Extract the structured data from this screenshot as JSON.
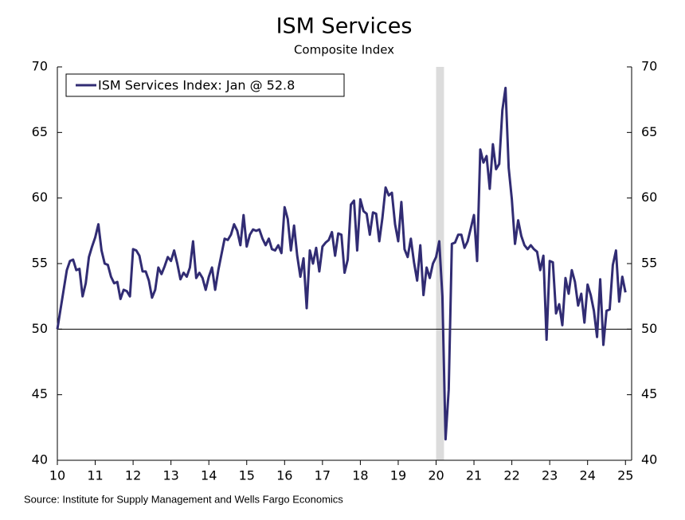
{
  "chart_data": {
    "type": "line",
    "title": "ISM Services",
    "subtitle": "Composite Index",
    "source": "Source: Institute for Supply Management and Wells Fargo Economics",
    "categories": [
      "10",
      null,
      null,
      null,
      null,
      null,
      null,
      null,
      null,
      null,
      null,
      null,
      "11",
      null,
      null,
      null,
      null,
      null,
      null,
      null,
      null,
      null,
      null,
      null,
      "12",
      null,
      null,
      null,
      null,
      null,
      null,
      null,
      null,
      null,
      null,
      null,
      "13",
      null,
      null,
      null,
      null,
      null,
      null,
      null,
      null,
      null,
      null,
      null,
      "14",
      null,
      null,
      null,
      null,
      null,
      null,
      null,
      null,
      null,
      null,
      null,
      "15",
      null,
      null,
      null,
      null,
      null,
      null,
      null,
      null,
      null,
      null,
      null,
      "16",
      null,
      null,
      null,
      null,
      null,
      null,
      null,
      null,
      null,
      null,
      null,
      "17",
      null,
      null,
      null,
      null,
      null,
      null,
      null,
      null,
      null,
      null,
      null,
      "18",
      null,
      null,
      null,
      null,
      null,
      null,
      null,
      null,
      null,
      null,
      null,
      "19",
      null,
      null,
      null,
      null,
      null,
      null,
      null,
      null,
      null,
      null,
      null,
      "20",
      null,
      null,
      null,
      null,
      null,
      null,
      null,
      null,
      null,
      null,
      null,
      "21",
      null,
      null,
      null,
      null,
      null,
      null,
      null,
      null,
      null,
      null,
      null,
      "22",
      null,
      null,
      null,
      null,
      null,
      null,
      null,
      null,
      null,
      null,
      null,
      "23",
      null,
      null,
      null,
      null,
      null,
      null,
      null,
      null,
      null,
      null,
      null,
      "24",
      null,
      null,
      null,
      null,
      null,
      null,
      null,
      null,
      null,
      null,
      null,
      "25"
    ],
    "series": [
      {
        "name": "ISM Services Index: Jan @ 52.8",
        "color": "#312c73",
        "values": [
          50.0,
          51.5,
          53.0,
          54.5,
          55.2,
          55.3,
          54.5,
          54.6,
          52.5,
          53.5,
          55.5,
          56.3,
          57.0,
          58.0,
          56.0,
          55.0,
          54.9,
          54.0,
          53.5,
          53.6,
          52.3,
          53.0,
          52.9,
          52.5,
          56.1,
          56.0,
          55.6,
          54.4,
          54.4,
          53.7,
          52.4,
          53.0,
          54.7,
          54.2,
          54.8,
          55.5,
          55.2,
          56.0,
          55.0,
          53.8,
          54.3,
          54.0,
          54.7,
          56.7,
          53.9,
          54.3,
          53.9,
          53.0,
          54.0,
          54.7,
          53.0,
          54.5,
          55.7,
          56.9,
          56.8,
          57.2,
          58.0,
          57.5,
          56.4,
          58.7,
          56.3,
          57.2,
          57.6,
          57.5,
          57.6,
          56.9,
          56.4,
          56.9,
          56.1,
          56.0,
          56.4,
          55.8,
          59.3,
          58.4,
          56.0,
          57.9,
          55.6,
          54.0,
          55.4,
          51.6,
          56.0,
          55.0,
          56.2,
          54.4,
          56.3,
          56.6,
          56.8,
          57.4,
          55.6,
          57.3,
          57.2,
          54.3,
          55.3,
          59.5,
          59.8,
          56.0,
          59.9,
          59.0,
          58.8,
          57.2,
          58.9,
          58.8,
          56.7,
          58.5,
          60.8,
          60.2,
          60.4,
          58.0,
          56.7,
          59.7,
          56.1,
          55.5,
          56.9,
          55.1,
          53.7,
          56.4,
          52.6,
          54.7,
          53.9,
          55.0,
          55.5,
          56.7,
          52.5,
          41.6,
          45.4,
          56.5,
          56.6,
          57.2,
          57.2,
          56.2,
          56.7,
          57.7,
          58.7,
          55.2,
          63.7,
          62.7,
          63.2,
          60.7,
          64.1,
          62.2,
          62.6,
          66.7,
          68.4,
          62.3,
          59.9,
          56.5,
          58.3,
          57.1,
          56.4,
          56.1,
          56.4,
          56.1,
          55.9,
          54.5,
          55.6,
          49.2,
          55.2,
          55.1,
          51.2,
          51.9,
          50.3,
          53.9,
          52.7,
          54.5,
          53.6,
          51.8,
          52.7,
          50.5,
          53.4,
          52.6,
          51.4,
          49.4,
          53.8,
          48.8,
          51.4,
          51.5,
          54.9,
          56.0,
          52.1,
          54.0,
          52.8
        ]
      }
    ],
    "ylim": [
      40,
      70
    ],
    "yticks": [
      40,
      45,
      50,
      55,
      60,
      65,
      70
    ],
    "y2lim": [
      40,
      70
    ],
    "y2ticks": [
      40,
      45,
      50,
      55,
      60,
      65,
      70
    ],
    "hline": 50,
    "shaded": [
      120,
      122.5
    ],
    "shaded_color": "#dcdcdc",
    "legend": "top-left",
    "grid": false
  }
}
